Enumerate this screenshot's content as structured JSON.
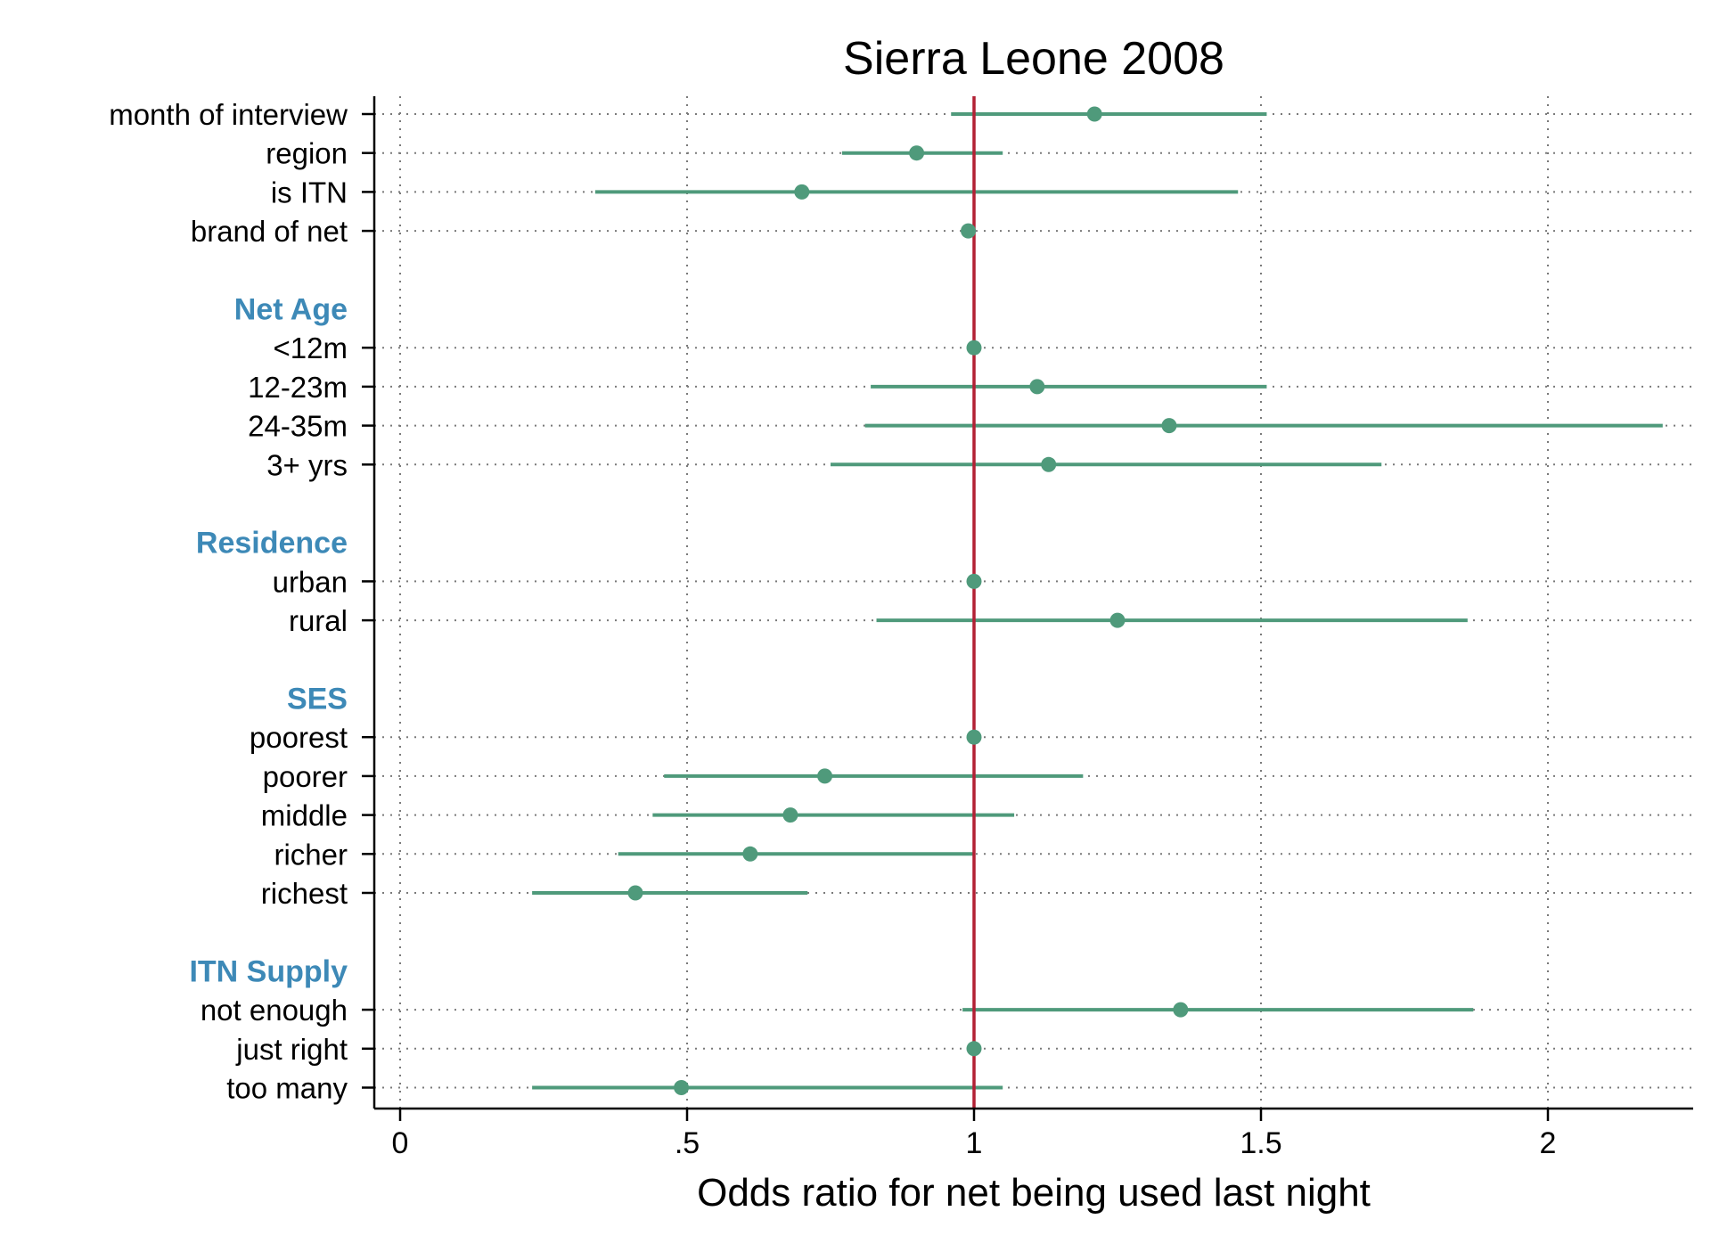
{
  "chart_data": {
    "type": "scatter",
    "title": "Sierra Leone 2008",
    "xlabel": "Odds ratio for net being used last night",
    "ylabel": "",
    "xlim": [
      -0.05,
      2.2
    ],
    "xticks": [
      {
        "value": 0,
        "label": "0"
      },
      {
        "value": 0.5,
        "label": ".5"
      },
      {
        "value": 1,
        "label": "1"
      },
      {
        "value": 1.5,
        "label": "1.5"
      },
      {
        "value": 2,
        "label": "2"
      }
    ],
    "reference_line": 1,
    "grid": true,
    "colors": {
      "marker": "#4f9a7b",
      "reference": "#b22034",
      "header": "#3d89b7",
      "axis": "#000000",
      "grid": "#7a7a7a"
    },
    "rows": [
      {
        "label": "month of interview",
        "kind": "item",
        "or": 1.21,
        "lo": 0.96,
        "hi": 1.51
      },
      {
        "label": "region",
        "kind": "item",
        "or": 0.9,
        "lo": 0.77,
        "hi": 1.05
      },
      {
        "label": "is ITN",
        "kind": "item",
        "or": 0.7,
        "lo": 0.34,
        "hi": 1.46
      },
      {
        "label": "brand of net",
        "kind": "item",
        "or": 0.99,
        "lo": 0.99,
        "hi": 0.99
      },
      {
        "label": "",
        "kind": "blank"
      },
      {
        "label": "Net Age",
        "kind": "header"
      },
      {
        "label": "<12m",
        "kind": "item",
        "or": 1.0,
        "lo": 1.0,
        "hi": 1.0
      },
      {
        "label": "12-23m",
        "kind": "item",
        "or": 1.11,
        "lo": 0.82,
        "hi": 1.51
      },
      {
        "label": "24-35m",
        "kind": "item",
        "or": 1.34,
        "lo": 0.81,
        "hi": 2.2
      },
      {
        "label": "3+ yrs",
        "kind": "item",
        "or": 1.13,
        "lo": 0.75,
        "hi": 1.71
      },
      {
        "label": "",
        "kind": "blank"
      },
      {
        "label": "Residence",
        "kind": "header"
      },
      {
        "label": "urban",
        "kind": "item",
        "or": 1.0,
        "lo": 1.0,
        "hi": 1.0
      },
      {
        "label": "rural",
        "kind": "item",
        "or": 1.25,
        "lo": 0.83,
        "hi": 1.86
      },
      {
        "label": "",
        "kind": "blank"
      },
      {
        "label": "SES",
        "kind": "header"
      },
      {
        "label": "poorest",
        "kind": "item",
        "or": 1.0,
        "lo": 1.0,
        "hi": 1.0
      },
      {
        "label": "poorer",
        "kind": "item",
        "or": 0.74,
        "lo": 0.46,
        "hi": 1.19
      },
      {
        "label": "middle",
        "kind": "item",
        "or": 0.68,
        "lo": 0.44,
        "hi": 1.07
      },
      {
        "label": "richer",
        "kind": "item",
        "or": 0.61,
        "lo": 0.38,
        "hi": 1.0
      },
      {
        "label": "richest",
        "kind": "item",
        "or": 0.41,
        "lo": 0.23,
        "hi": 0.71
      },
      {
        "label": "",
        "kind": "blank"
      },
      {
        "label": "ITN Supply",
        "kind": "header"
      },
      {
        "label": "not enough",
        "kind": "item",
        "or": 1.36,
        "lo": 0.98,
        "hi": 1.87
      },
      {
        "label": "just right",
        "kind": "item",
        "or": 1.0,
        "lo": 1.0,
        "hi": 1.0
      },
      {
        "label": "too many",
        "kind": "item",
        "or": 0.49,
        "lo": 0.23,
        "hi": 1.05
      }
    ]
  }
}
